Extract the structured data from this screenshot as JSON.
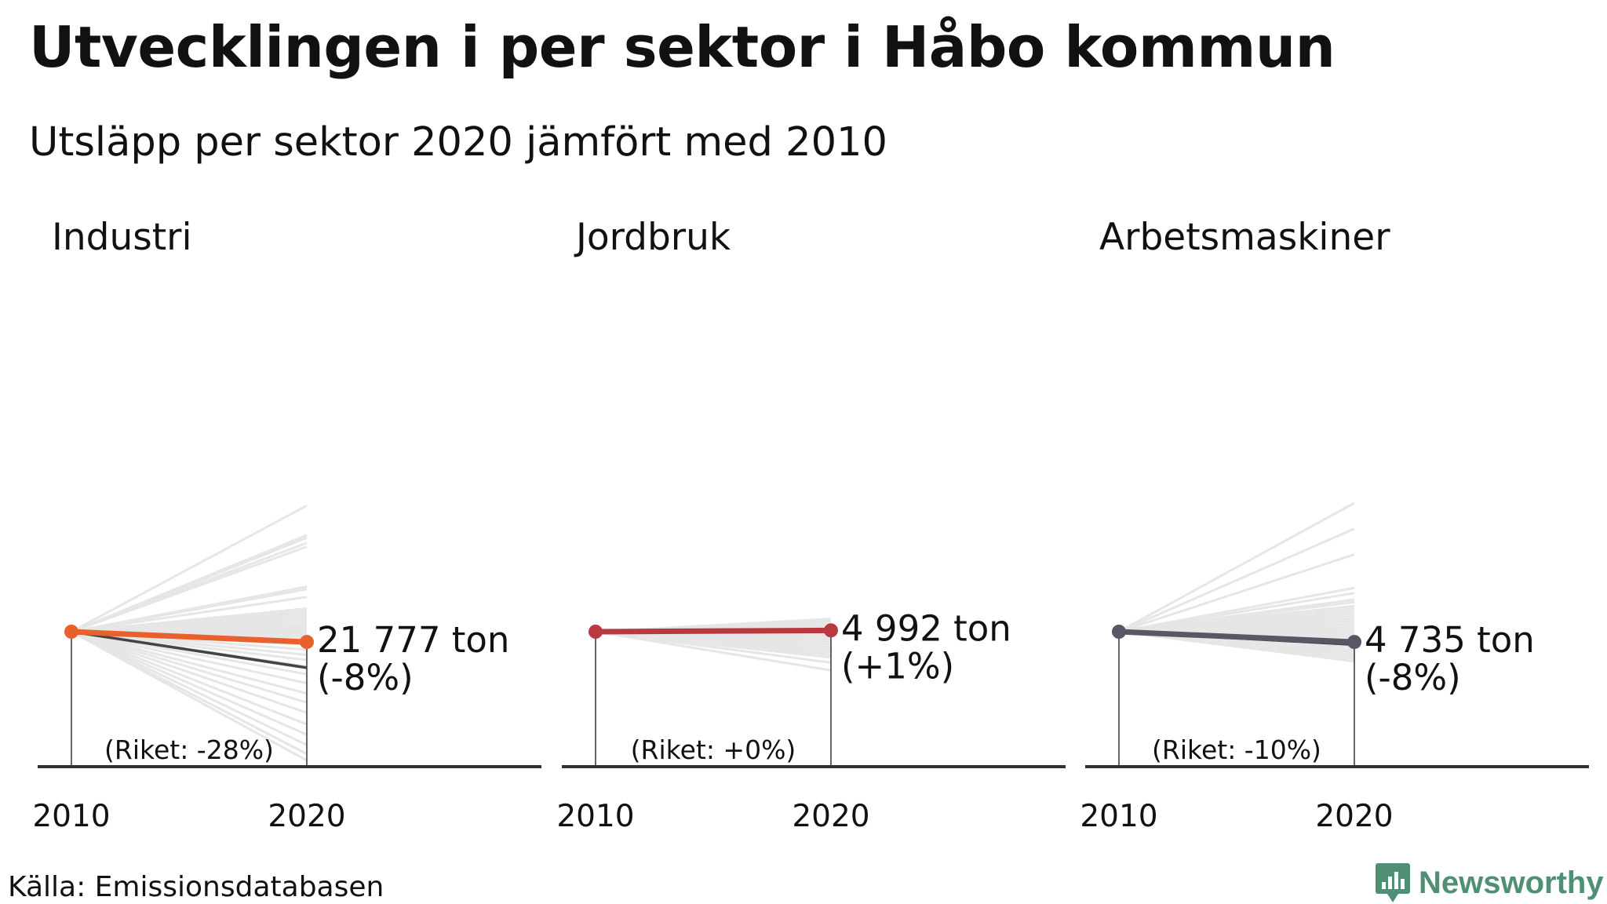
{
  "title": "Utvecklingen i per sektor i Håbo kommun",
  "subtitle": "Utsläpp per sektor 2020 jämfört med 2010",
  "source": "Källa: Emissionsdatabasen",
  "brand": {
    "name": "Newsworthy",
    "color": "#4f8f74",
    "icon": "bar-chart-pin-icon"
  },
  "colors": {
    "background_lines": "#e6e6e6",
    "national_line": "#444444",
    "axis": "#333333"
  },
  "chart_data": [
    {
      "type": "line",
      "title": "Industri",
      "x": [
        "2010",
        "2020"
      ],
      "series": [
        {
          "name": "Håbo",
          "change_pct": -8,
          "color": "#e8602c"
        },
        {
          "name": "Riket",
          "change_pct": -28,
          "color": "#444444"
        }
      ],
      "background_change_pct": [
        98,
        75,
        73,
        69,
        66,
        35,
        33,
        27,
        18,
        17,
        15,
        14,
        13,
        12,
        10,
        9,
        7,
        6,
        6,
        5,
        4,
        3,
        2,
        1,
        0,
        -1,
        -2,
        -3,
        -5,
        -7,
        -10,
        -14,
        -18,
        -22,
        -27,
        -33,
        -40,
        -48,
        -55,
        -63,
        -72,
        -80,
        -88,
        -95,
        -100
      ],
      "end_label": "21 777 ton",
      "change_label": "(-8%)",
      "national_label": "(Riket: -28%)"
    },
    {
      "type": "line",
      "title": "Jordbruk",
      "x": [
        "2010",
        "2020"
      ],
      "series": [
        {
          "name": "Håbo",
          "change_pct": 1,
          "color": "#b83a3f"
        },
        {
          "name": "Riket",
          "change_pct": 0,
          "color": "#444444"
        }
      ],
      "background_change_pct": [
        10,
        9,
        8,
        7,
        6,
        5,
        4,
        3,
        2,
        1,
        0,
        -1,
        -2,
        -3,
        -4,
        -6,
        -8,
        -10,
        -12,
        -14,
        -16,
        -18,
        -20,
        -24,
        -30
      ],
      "end_label": "4 992 ton",
      "change_label": "(+1%)",
      "national_label": "(Riket: +0%)"
    },
    {
      "type": "line",
      "title": "Arbetsmaskiner",
      "x": [
        "2010",
        "2020"
      ],
      "series": [
        {
          "name": "Håbo",
          "change_pct": -8,
          "color": "#595766"
        },
        {
          "name": "Riket",
          "change_pct": -10,
          "color": "#444444"
        }
      ],
      "background_change_pct": [
        100,
        80,
        60,
        34,
        30,
        25,
        23,
        20,
        18,
        16,
        14,
        12,
        10,
        8,
        6,
        4,
        2,
        0,
        -2,
        -4,
        -6,
        -8,
        -10,
        -12,
        -14,
        -16,
        -18,
        -19,
        -20,
        -21,
        -23
      ],
      "end_label": "4 735 ton",
      "change_label": "(-8%)",
      "national_label": "(Riket: -10%)"
    }
  ]
}
